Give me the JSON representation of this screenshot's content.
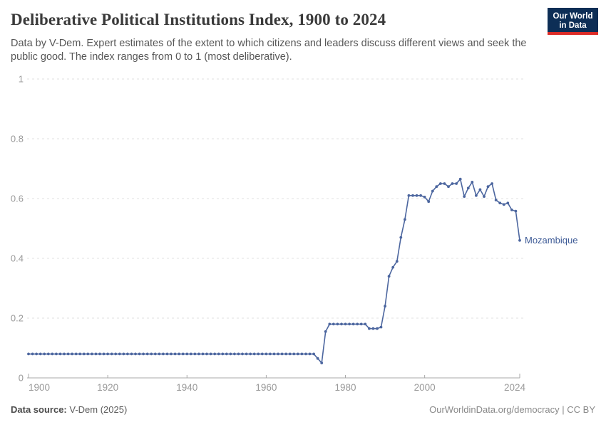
{
  "header": {
    "title": "Deliberative Political Institutions Index, 1900 to 2024",
    "subtitle": "Data by V-Dem. Expert estimates of the extent to which citizens and leaders discuss different views and seek the public good. The index ranges from 0 to 1 (most deliberative)."
  },
  "logo": {
    "line1": "Our World",
    "line2": "in Data",
    "bg_color": "#0d2e56",
    "bar_color": "#dc2c27"
  },
  "chart_data": {
    "type": "line",
    "title": "Deliberative Political Institutions Index, 1900 to 2024",
    "xlabel": "",
    "ylabel": "",
    "x_start_year": 1900,
    "x_end_year": 2024,
    "xticks": [
      1900,
      1920,
      1940,
      1960,
      1980,
      2000,
      2024
    ],
    "yticks": [
      0,
      0.2,
      0.4,
      0.6,
      0.8,
      1
    ],
    "ylim": [
      0,
      1
    ],
    "grid": "dashed-horizontal",
    "legend_position": "end-of-line-label",
    "line_color": "#4c669f",
    "axis_color": "#a8a8a8",
    "grid_color": "#e0e0e0",
    "tick_label_color": "#9a9a9a",
    "series": [
      {
        "name": "Mozambique",
        "label_color": "#3d5a96",
        "values": [
          0.08,
          0.08,
          0.08,
          0.08,
          0.08,
          0.08,
          0.08,
          0.08,
          0.08,
          0.08,
          0.08,
          0.08,
          0.08,
          0.08,
          0.08,
          0.08,
          0.08,
          0.08,
          0.08,
          0.08,
          0.08,
          0.08,
          0.08,
          0.08,
          0.08,
          0.08,
          0.08,
          0.08,
          0.08,
          0.08,
          0.08,
          0.08,
          0.08,
          0.08,
          0.08,
          0.08,
          0.08,
          0.08,
          0.08,
          0.08,
          0.08,
          0.08,
          0.08,
          0.08,
          0.08,
          0.08,
          0.08,
          0.08,
          0.08,
          0.08,
          0.08,
          0.08,
          0.08,
          0.08,
          0.08,
          0.08,
          0.08,
          0.08,
          0.08,
          0.08,
          0.08,
          0.08,
          0.08,
          0.08,
          0.08,
          0.08,
          0.08,
          0.08,
          0.08,
          0.08,
          0.08,
          0.08,
          0.08,
          0.065,
          0.05,
          0.155,
          0.18,
          0.18,
          0.18,
          0.18,
          0.18,
          0.18,
          0.18,
          0.18,
          0.18,
          0.18,
          0.165,
          0.165,
          0.165,
          0.17,
          0.24,
          0.34,
          0.37,
          0.39,
          0.47,
          0.53,
          0.61,
          0.61,
          0.61,
          0.61,
          0.605,
          0.59,
          0.625,
          0.64,
          0.65,
          0.65,
          0.64,
          0.65,
          0.65,
          0.665,
          0.607,
          0.635,
          0.655,
          0.61,
          0.63,
          0.607,
          0.64,
          0.65,
          0.595,
          0.585,
          0.58,
          0.585,
          0.562,
          0.558,
          0.46
        ]
      }
    ]
  },
  "footer": {
    "source_label": "Data source:",
    "source_value": " V-Dem (2025)",
    "license": "OurWorldinData.org/democracy | CC BY"
  }
}
